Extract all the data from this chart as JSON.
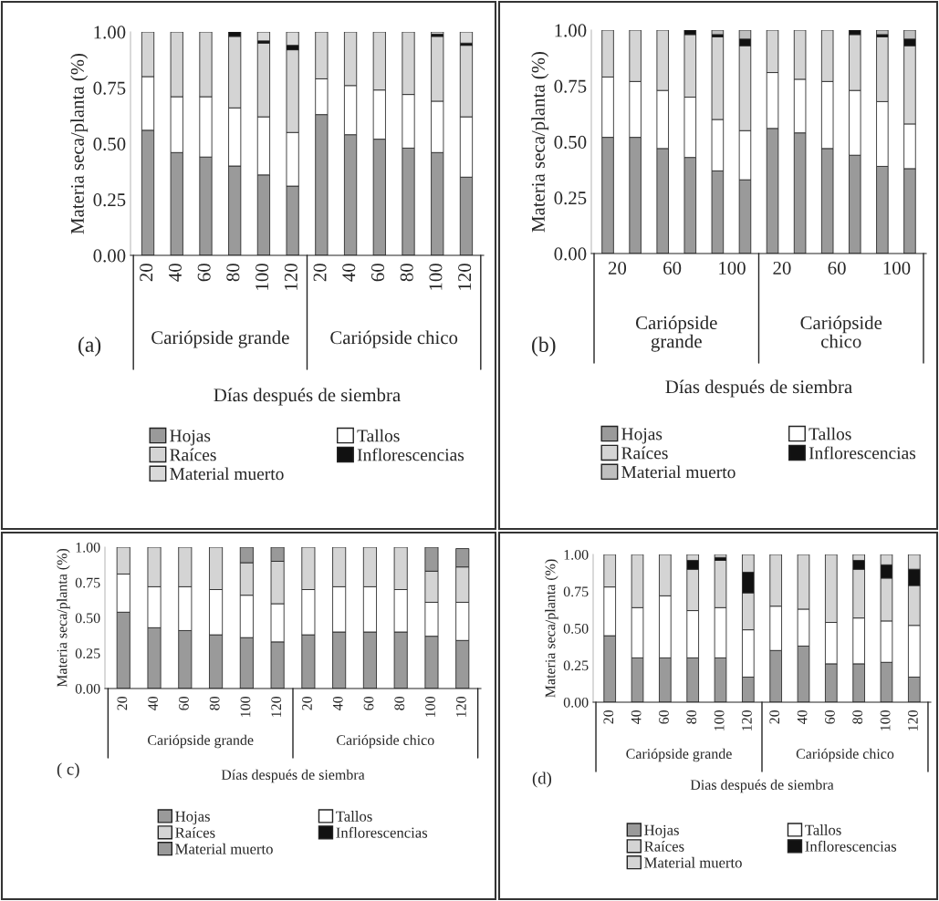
{
  "chart_data": [
    {
      "type": "bar",
      "stacked": true,
      "ylabel": "Materia seca/planta (%)",
      "xlabel": "Días después de siembra",
      "categories": [
        "20",
        "40",
        "60",
        "80",
        "100",
        "120",
        "20",
        "40",
        "60",
        "80",
        "100",
        "120"
      ],
      "ylim": [
        0,
        1
      ],
      "yticks": [
        {
          "value": 0,
          "label": "0.00"
        },
        {
          "value": 0.25,
          "label": "0.25"
        },
        {
          "value": 0.5,
          "label": "0.50"
        },
        {
          "value": 0.75,
          "label": "0.75"
        },
        {
          "value": 1,
          "label": "1.00"
        }
      ],
      "legend": "bottom",
      "grid": false,
      "annotations": [
        "Cariópside grande",
        "Cariópside chico",
        "(a)"
      ],
      "series": [
        {
          "name": "Hojas",
          "color": "#9a9a9a",
          "values": [
            0.56,
            0.46,
            0.44,
            0.4,
            0.36,
            0.31,
            0.63,
            0.54,
            0.52,
            0.48,
            0.46,
            0.35
          ]
        },
        {
          "name": "Tallos",
          "color": "#ffffff",
          "values": [
            0.24,
            0.25,
            0.27,
            0.26,
            0.26,
            0.24,
            0.16,
            0.22,
            0.22,
            0.24,
            0.23,
            0.27
          ]
        },
        {
          "name": "Raíces",
          "color": "#d4d4d4",
          "values": [
            0.2,
            0.29,
            0.29,
            0.32,
            0.33,
            0.37,
            0.21,
            0.24,
            0.26,
            0.28,
            0.29,
            0.32
          ]
        },
        {
          "name": "Inflorescencias",
          "color": "#111111",
          "values": [
            0,
            0,
            0,
            0.02,
            0.01,
            0.02,
            0,
            0,
            0,
            0,
            0.01,
            0.01
          ]
        },
        {
          "name": "Material muerto",
          "color": "#d9d9d9",
          "values": [
            0,
            0,
            0,
            0,
            0.04,
            0.06,
            0,
            0,
            0,
            0,
            0.01,
            0.05
          ]
        }
      ]
    },
    {
      "type": "bar",
      "stacked": true,
      "ylabel": "Materia seca/planta (%)",
      "xlabel": "Días después de siembra",
      "categories": [
        "20",
        null,
        "60",
        null,
        "100",
        null,
        "20",
        null,
        "60",
        null,
        "100",
        null
      ],
      "ylim": [
        0,
        1
      ],
      "yticks": [
        {
          "value": 0,
          "label": "0.00"
        },
        {
          "value": 0.25,
          "label": "0.25"
        },
        {
          "value": 0.5,
          "label": "0.50"
        },
        {
          "value": 0.75,
          "label": "0.75"
        },
        {
          "value": 1,
          "label": "1.00"
        }
      ],
      "legend": "bottom",
      "grid": false,
      "annotations": [
        "Cariópside\ngrande",
        "Cariópside\nchico",
        "(b)"
      ],
      "series": [
        {
          "name": "Hojas",
          "color": "#9a9a9a",
          "values": [
            0.52,
            0.52,
            0.47,
            0.43,
            0.37,
            0.33,
            0.56,
            0.54,
            0.47,
            0.44,
            0.39,
            0.38
          ]
        },
        {
          "name": "Tallos",
          "color": "#ffffff",
          "values": [
            0.27,
            0.25,
            0.26,
            0.27,
            0.23,
            0.22,
            0.25,
            0.24,
            0.3,
            0.29,
            0.29,
            0.2
          ]
        },
        {
          "name": "Raíces",
          "color": "#d4d4d4",
          "values": [
            0.21,
            0.23,
            0.27,
            0.28,
            0.37,
            0.38,
            0.19,
            0.22,
            0.23,
            0.25,
            0.29,
            0.35
          ]
        },
        {
          "name": "Inflorescencias",
          "color": "#111111",
          "values": [
            0,
            0,
            0,
            0.02,
            0.01,
            0.03,
            0,
            0,
            0,
            0.02,
            0.01,
            0.03
          ]
        },
        {
          "name": "Material muerto",
          "color": "#bfbfbf",
          "values": [
            0,
            0,
            0,
            0,
            0.02,
            0.04,
            0,
            0,
            0,
            0,
            0.02,
            0.04
          ]
        }
      ]
    },
    {
      "type": "bar",
      "stacked": true,
      "ylabel": "Materia seca/planta (%)",
      "xlabel": "Días después de siembra",
      "categories": [
        "20",
        "40",
        "60",
        "80",
        "100",
        "120",
        "20",
        "40",
        "60",
        "80",
        "100",
        "120"
      ],
      "ylim": [
        0,
        1
      ],
      "yticks": [
        {
          "value": 0,
          "label": "0.00"
        },
        {
          "value": 0.25,
          "label": "0.25"
        },
        {
          "value": 0.5,
          "label": "0.50"
        },
        {
          "value": 0.75,
          "label": "0.75"
        },
        {
          "value": 1,
          "label": "1.00"
        }
      ],
      "legend": "bottom",
      "grid": false,
      "annotations": [
        "Cariópside grande",
        "Cariópside chico",
        "( c)"
      ],
      "series": [
        {
          "name": "Hojas",
          "color": "#9a9a9a",
          "values": [
            0.54,
            0.43,
            0.41,
            0.38,
            0.36,
            0.33,
            0.38,
            0.4,
            0.4,
            0.4,
            0.37,
            0.34
          ]
        },
        {
          "name": "Tallos",
          "color": "#ffffff",
          "values": [
            0.27,
            0.29,
            0.31,
            0.32,
            0.3,
            0.27,
            0.32,
            0.32,
            0.32,
            0.3,
            0.24,
            0.27
          ]
        },
        {
          "name": "Raíces",
          "color": "#d4d4d4",
          "values": [
            0.19,
            0.28,
            0.28,
            0.3,
            0.23,
            0.3,
            0.3,
            0.28,
            0.28,
            0.3,
            0.22,
            0.25
          ]
        },
        {
          "name": "Inflorescencias",
          "color": "#111111",
          "values": [
            0,
            0,
            0,
            0,
            0,
            0,
            0,
            0,
            0,
            0,
            0,
            null
          ]
        },
        {
          "name": "Material muerto",
          "color": "#999999",
          "values": [
            0,
            0,
            0,
            0,
            0.11,
            0.1,
            0,
            0,
            0,
            0,
            0.17,
            0.13
          ]
        }
      ]
    },
    {
      "type": "bar",
      "stacked": true,
      "ylabel": "Materia seca/planta (%)",
      "xlabel": "Dias después de siembra",
      "categories": [
        "20",
        "40",
        "60",
        "80",
        "100",
        "120",
        "20",
        "40",
        "60",
        "80",
        "100",
        "120"
      ],
      "ylim": [
        0,
        1
      ],
      "yticks": [
        {
          "value": 0,
          "label": "0.00"
        },
        {
          "value": 0.25,
          "label": "0.25"
        },
        {
          "value": 0.5,
          "label": "0.50"
        },
        {
          "value": 0.75,
          "label": "0.75"
        },
        {
          "value": 1,
          "label": "1.00"
        }
      ],
      "legend": "bottom",
      "grid": false,
      "annotations": [
        "Cariópside grande",
        "Cariópside chico",
        "(d)"
      ],
      "series": [
        {
          "name": "Hojas",
          "color": "#9a9a9a",
          "values": [
            0.45,
            0.3,
            0.3,
            0.3,
            0.3,
            0.17,
            0.35,
            0.38,
            0.26,
            0.26,
            0.27,
            0.17
          ]
        },
        {
          "name": "Tallos",
          "color": "#ffffff",
          "values": [
            0.33,
            0.34,
            0.42,
            0.32,
            0.34,
            0.32,
            0.3,
            0.25,
            0.28,
            0.31,
            0.28,
            0.35
          ]
        },
        {
          "name": "Raíces",
          "color": "#d4d4d4",
          "values": [
            0.22,
            0.36,
            0.28,
            0.28,
            0.32,
            0.25,
            0.35,
            0.37,
            0.46,
            0.33,
            0.29,
            0.27
          ]
        },
        {
          "name": "Inflorescencias",
          "color": "#111111",
          "values": [
            0,
            0,
            0,
            0.06,
            0.02,
            0.14,
            0,
            0,
            0,
            0.06,
            0.09,
            0.11
          ]
        },
        {
          "name": "Material muerto",
          "color": "#d4d4d4",
          "values": [
            0,
            0,
            0,
            0.04,
            0.02,
            0.12,
            0,
            0,
            0,
            0.04,
            0.07,
            0.1
          ]
        }
      ]
    }
  ]
}
